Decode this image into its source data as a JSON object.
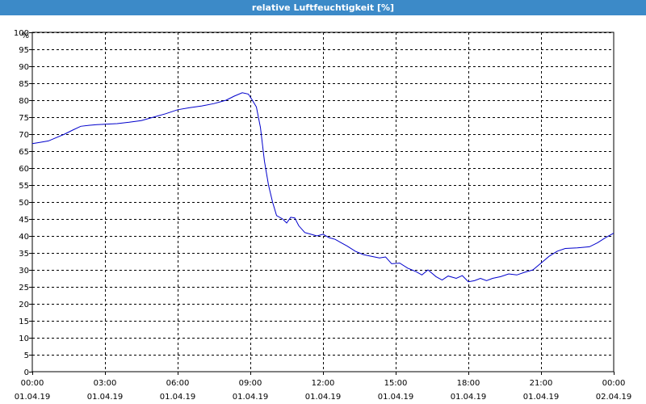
{
  "window": {
    "title": "relative Luftfeuchtigkeit [%]"
  },
  "chart_data": {
    "type": "line",
    "title": "relative Luftfeuchtigkeit [%]",
    "ylabel": "%",
    "xlabel": "",
    "ylim": [
      0,
      100
    ],
    "yticks": [
      0,
      5,
      10,
      15,
      20,
      25,
      30,
      35,
      40,
      45,
      50,
      55,
      60,
      65,
      70,
      75,
      80,
      85,
      90,
      95,
      100
    ],
    "xlim": [
      "2019-04-01 00:00",
      "2019-04-02 00:00"
    ],
    "xticks": [
      {
        "time": "00:00",
        "date": "01.04.19",
        "x": "2019-04-01 00:00"
      },
      {
        "time": "03:00",
        "date": "01.04.19",
        "x": "2019-04-01 03:00"
      },
      {
        "time": "06:00",
        "date": "01.04.19",
        "x": "2019-04-01 06:00"
      },
      {
        "time": "09:00",
        "date": "01.04.19",
        "x": "2019-04-01 09:00"
      },
      {
        "time": "12:00",
        "date": "01.04.19",
        "x": "2019-04-01 12:00"
      },
      {
        "time": "15:00",
        "date": "01.04.19",
        "x": "2019-04-01 15:00"
      },
      {
        "time": "18:00",
        "date": "01.04.19",
        "x": "2019-04-01 18:00"
      },
      {
        "time": "21:00",
        "date": "01.04.19",
        "x": "2019-04-01 21:00"
      },
      {
        "time": "00:00",
        "date": "02.04.19",
        "x": "2019-04-02 00:00"
      }
    ],
    "grid": true,
    "series": [
      {
        "color": "#0000cc",
        "points": [
          [
            "2019-04-01 00:00",
            67.2
          ],
          [
            "2019-04-01 00:20",
            67.6
          ],
          [
            "2019-04-01 00:40",
            68.0
          ],
          [
            "2019-04-01 01:00",
            69.0
          ],
          [
            "2019-04-01 01:20",
            70.0
          ],
          [
            "2019-04-01 01:40",
            71.2
          ],
          [
            "2019-04-01 02:00",
            72.3
          ],
          [
            "2019-04-01 02:20",
            72.6
          ],
          [
            "2019-04-01 02:40",
            72.8
          ],
          [
            "2019-04-01 03:00",
            72.9
          ],
          [
            "2019-04-01 03:30",
            73.1
          ],
          [
            "2019-04-01 04:00",
            73.5
          ],
          [
            "2019-04-01 04:30",
            74.0
          ],
          [
            "2019-04-01 05:00",
            75.0
          ],
          [
            "2019-04-01 05:30",
            76.0
          ],
          [
            "2019-04-01 06:00",
            77.2
          ],
          [
            "2019-04-01 06:30",
            77.8
          ],
          [
            "2019-04-01 07:00",
            78.3
          ],
          [
            "2019-04-01 07:30",
            79.0
          ],
          [
            "2019-04-01 08:00",
            80.0
          ],
          [
            "2019-04-01 08:20",
            81.2
          ],
          [
            "2019-04-01 08:40",
            82.2
          ],
          [
            "2019-04-01 08:55",
            81.8
          ],
          [
            "2019-04-01 09:05",
            80.0
          ],
          [
            "2019-04-01 09:15",
            78.0
          ],
          [
            "2019-04-01 09:25",
            72.0
          ],
          [
            "2019-04-01 09:35",
            62.0
          ],
          [
            "2019-04-01 09:45",
            55.0
          ],
          [
            "2019-04-01 09:55",
            50.0
          ],
          [
            "2019-04-01 10:05",
            46.0
          ],
          [
            "2019-04-01 10:20",
            45.0
          ],
          [
            "2019-04-01 10:30",
            43.8
          ],
          [
            "2019-04-01 10:40",
            45.5
          ],
          [
            "2019-04-01 10:50",
            45.3
          ],
          [
            "2019-04-01 11:00",
            43.0
          ],
          [
            "2019-04-01 11:15",
            41.0
          ],
          [
            "2019-04-01 11:30",
            40.5
          ],
          [
            "2019-04-01 11:45",
            40.0
          ],
          [
            "2019-04-01 12:00",
            40.5
          ],
          [
            "2019-04-01 12:15",
            39.5
          ],
          [
            "2019-04-01 12:30",
            39.0
          ],
          [
            "2019-04-01 12:45",
            38.0
          ],
          [
            "2019-04-01 13:00",
            37.0
          ],
          [
            "2019-04-01 13:20",
            35.5
          ],
          [
            "2019-04-01 13:40",
            34.5
          ],
          [
            "2019-04-01 14:00",
            34.0
          ],
          [
            "2019-04-01 14:20",
            33.5
          ],
          [
            "2019-04-01 14:35",
            33.8
          ],
          [
            "2019-04-01 14:50",
            31.8
          ],
          [
            "2019-04-01 15:10",
            32.0
          ],
          [
            "2019-04-01 15:30",
            30.5
          ],
          [
            "2019-04-01 15:50",
            29.5
          ],
          [
            "2019-04-01 16:05",
            28.5
          ],
          [
            "2019-04-01 16:20",
            30.0
          ],
          [
            "2019-04-01 16:40",
            28.0
          ],
          [
            "2019-04-01 16:55",
            27.0
          ],
          [
            "2019-04-01 17:10",
            28.2
          ],
          [
            "2019-04-01 17:30",
            27.5
          ],
          [
            "2019-04-01 17:45",
            28.3
          ],
          [
            "2019-04-01 18:00",
            26.5
          ],
          [
            "2019-04-01 18:15",
            26.8
          ],
          [
            "2019-04-01 18:30",
            27.5
          ],
          [
            "2019-04-01 18:45",
            26.8
          ],
          [
            "2019-04-01 19:00",
            27.5
          ],
          [
            "2019-04-01 19:20",
            28.0
          ],
          [
            "2019-04-01 19:40",
            28.8
          ],
          [
            "2019-04-01 20:00",
            28.5
          ],
          [
            "2019-04-01 20:20",
            29.3
          ],
          [
            "2019-04-01 20:40",
            30.0
          ],
          [
            "2019-04-01 21:00",
            32.0
          ],
          [
            "2019-04-01 21:20",
            34.0
          ],
          [
            "2019-04-01 21:40",
            35.5
          ],
          [
            "2019-04-01 22:00",
            36.3
          ],
          [
            "2019-04-01 22:30",
            36.5
          ],
          [
            "2019-04-01 23:00",
            36.8
          ],
          [
            "2019-04-01 23:20",
            38.0
          ],
          [
            "2019-04-01 23:40",
            39.5
          ],
          [
            "2019-04-02 00:00",
            40.8
          ]
        ]
      }
    ]
  }
}
